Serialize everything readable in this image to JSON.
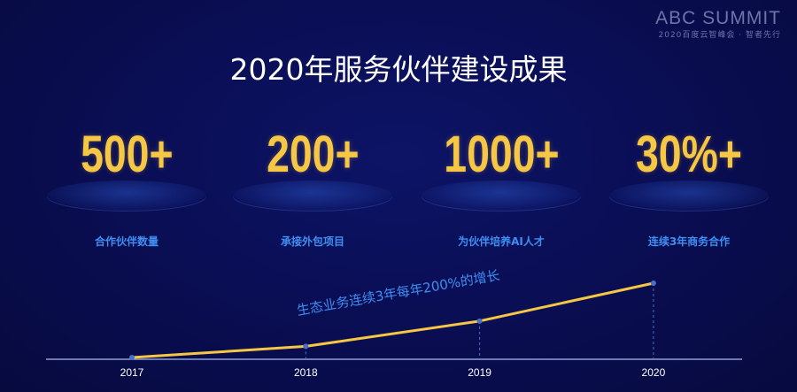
{
  "brand": {
    "name": "ABC SUMMIT",
    "tagline": "2020百度云智峰会 · 智者先行"
  },
  "title": "2020年服务伙伴建设成果",
  "stats": [
    {
      "value": "500+",
      "label": "合作伙伴数量"
    },
    {
      "value": "200+",
      "label": "承接外包项目"
    },
    {
      "value": "1000+",
      "label": "为伙伴培养AI人才"
    },
    {
      "value": "30%+",
      "label": "连续3年商务合作"
    }
  ],
  "chart_data": {
    "type": "line",
    "categories": [
      "2017",
      "2018",
      "2019",
      "2020"
    ],
    "values": [
      0,
      15,
      49,
      100
    ],
    "annotation": "生态业务连续3年每年200%的增长",
    "line_color": "#f6c744",
    "point_color": "#4a6fc8",
    "grid": false
  },
  "colors": {
    "background": "#0a0e55",
    "accent": "#f6c744",
    "label": "#3f8ef2"
  }
}
